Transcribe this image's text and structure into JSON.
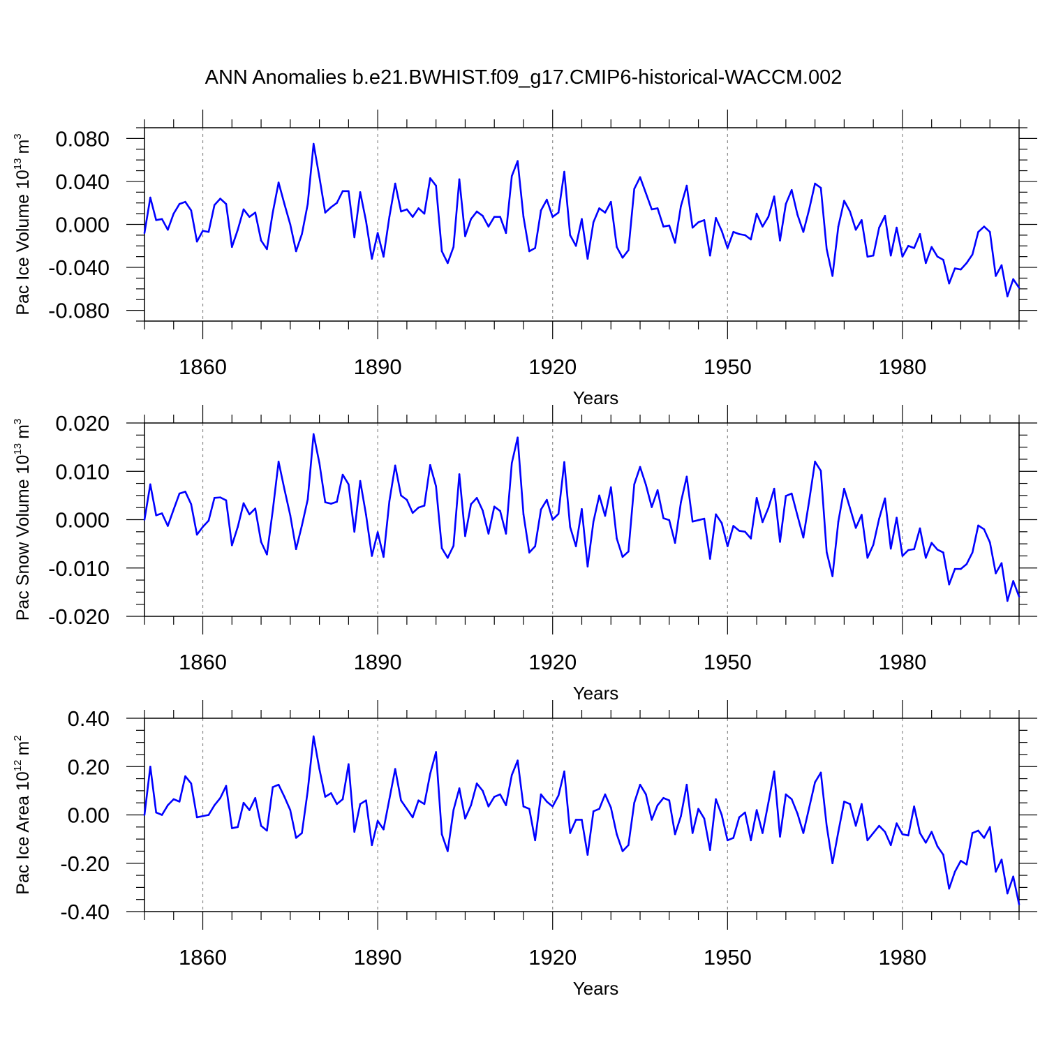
{
  "title": "ANN Anomalies b.e21.BWHIST.f09_g17.CMIP6-historical-WACCM.002",
  "line_color": "#0000ff",
  "chart_data": [
    {
      "type": "line",
      "name": "ice-volume",
      "ylabel_main": "Pac Ice Volume 10",
      "ylabel_exp": "13",
      "ylabel_unit": "m",
      "ylabel_unit_exp": "3",
      "xlabel": "Years",
      "xlim": [
        1850,
        2000
      ],
      "ylim": [
        -0.09,
        0.09
      ],
      "xticks": [
        1860,
        1890,
        1920,
        1950,
        1980
      ],
      "xtick_labels": [
        "1860",
        "1890",
        "1920",
        "1950",
        "1980"
      ],
      "yticks": [
        -0.08,
        -0.04,
        0.0,
        0.04,
        0.08
      ],
      "ytick_labels": [
        "-0.080",
        "-0.040",
        "0.000",
        "0.040",
        "0.080"
      ],
      "grid": "vertical-dashed",
      "x_start": 1850,
      "values": [
        -0.008,
        0.025,
        0.004,
        0.005,
        -0.005,
        0.01,
        0.019,
        0.021,
        0.013,
        -0.016,
        -0.006,
        -0.007,
        0.018,
        0.024,
        0.019,
        -0.021,
        -0.005,
        0.014,
        0.007,
        0.011,
        -0.015,
        -0.023,
        0.011,
        0.039,
        0.019,
        0.0,
        -0.025,
        -0.009,
        0.019,
        0.075,
        0.044,
        0.011,
        0.016,
        0.02,
        0.031,
        0.031,
        -0.012,
        0.03,
        0.003,
        -0.032,
        -0.008,
        -0.03,
        0.007,
        0.038,
        0.012,
        0.014,
        0.007,
        0.015,
        0.01,
        0.043,
        0.036,
        -0.025,
        -0.036,
        -0.021,
        0.042,
        -0.011,
        0.005,
        0.012,
        0.008,
        -0.002,
        0.007,
        0.007,
        -0.008,
        0.045,
        0.059,
        0.007,
        -0.025,
        -0.022,
        0.013,
        0.023,
        0.007,
        0.011,
        0.049,
        -0.01,
        -0.02,
        0.005,
        -0.032,
        0.002,
        0.015,
        0.011,
        0.021,
        -0.021,
        -0.031,
        -0.024,
        0.033,
        0.044,
        0.029,
        0.014,
        0.015,
        -0.002,
        -0.001,
        -0.017,
        0.017,
        0.036,
        -0.003,
        0.002,
        0.004,
        -0.029,
        0.006,
        -0.006,
        -0.022,
        -0.007,
        -0.009,
        -0.01,
        -0.014,
        0.01,
        -0.002,
        0.007,
        0.026,
        -0.015,
        0.019,
        0.032,
        0.009,
        -0.007,
        0.014,
        0.038,
        0.034,
        -0.023,
        -0.048,
        -0.002,
        0.022,
        0.012,
        -0.005,
        0.004,
        -0.03,
        -0.029,
        -0.003,
        0.008,
        -0.029,
        -0.003,
        -0.03,
        -0.02,
        -0.022,
        -0.009,
        -0.036,
        -0.021,
        -0.03,
        -0.033,
        -0.055,
        -0.041,
        -0.042,
        -0.036,
        -0.028,
        -0.007,
        -0.002,
        -0.007,
        -0.048,
        -0.038,
        -0.067,
        -0.051,
        -0.059
      ]
    },
    {
      "type": "line",
      "name": "snow-volume",
      "ylabel_main": "Pac Snow Volume 10",
      "ylabel_exp": "13",
      "ylabel_unit": "m",
      "ylabel_unit_exp": "3",
      "xlabel": "Years",
      "xlim": [
        1850,
        2000
      ],
      "ylim": [
        -0.02,
        0.02
      ],
      "xticks": [
        1860,
        1890,
        1920,
        1950,
        1980
      ],
      "xtick_labels": [
        "1860",
        "1890",
        "1920",
        "1950",
        "1980"
      ],
      "yticks": [
        -0.02,
        -0.01,
        0.0,
        0.01,
        0.02
      ],
      "ytick_labels": [
        "-0.020",
        "-0.010",
        "0.000",
        "0.010",
        "0.020"
      ],
      "grid": "vertical-dashed",
      "x_start": 1850,
      "values": [
        0.0,
        0.0073,
        0.0009,
        0.0013,
        -0.0013,
        0.0021,
        0.0054,
        0.0058,
        0.0032,
        -0.0031,
        -0.0015,
        -0.0002,
        0.0045,
        0.0046,
        0.004,
        -0.0053,
        -0.0015,
        0.0034,
        0.0011,
        0.0023,
        -0.0046,
        -0.0072,
        0.0019,
        0.012,
        0.0063,
        0.0009,
        -0.0061,
        -0.0012,
        0.0042,
        0.0177,
        0.0117,
        0.0036,
        0.0033,
        0.0037,
        0.0093,
        0.0073,
        -0.0025,
        0.008,
        0.001,
        -0.0075,
        -0.0026,
        -0.0077,
        0.0038,
        0.0112,
        0.005,
        0.0041,
        0.0014,
        0.0025,
        0.0029,
        0.0113,
        0.0069,
        -0.0059,
        -0.0079,
        -0.0054,
        0.0094,
        -0.0034,
        0.0032,
        0.0045,
        0.0019,
        -0.0029,
        0.0027,
        0.0018,
        -0.0029,
        0.0117,
        0.017,
        0.0011,
        -0.0068,
        -0.0055,
        0.0021,
        0.0041,
        0.0,
        0.0012,
        0.0119,
        -0.0015,
        -0.0055,
        0.0022,
        -0.0097,
        -0.0004,
        0.005,
        0.0008,
        0.0067,
        -0.0039,
        -0.0077,
        -0.0066,
        0.0073,
        0.0109,
        0.0072,
        0.0026,
        0.0061,
        0.0003,
        -0.0001,
        -0.0048,
        0.0036,
        0.0089,
        -0.0004,
        -0.0001,
        0.0002,
        -0.0081,
        0.0011,
        -0.0007,
        -0.0055,
        -0.0013,
        -0.0023,
        -0.0025,
        -0.0039,
        0.0045,
        -0.0005,
        0.0024,
        0.0064,
        -0.0046,
        0.0049,
        0.0054,
        0.0008,
        -0.0037,
        0.0039,
        0.012,
        0.0101,
        -0.0067,
        -0.0117,
        -0.0004,
        0.0064,
        0.0024,
        -0.0017,
        0.001,
        -0.0079,
        -0.0052,
        0.0002,
        0.0044,
        -0.006,
        0.0004,
        -0.0075,
        -0.0063,
        -0.0061,
        -0.0018,
        -0.0079,
        -0.0048,
        -0.0062,
        -0.0068,
        -0.0134,
        -0.0102,
        -0.0102,
        -0.0092,
        -0.0068,
        -0.0012,
        -0.002,
        -0.0047,
        -0.0111,
        -0.009,
        -0.0168,
        -0.0127,
        -0.0159
      ]
    },
    {
      "type": "line",
      "name": "ice-area",
      "ylabel_main": "Pac Ice Area 10",
      "ylabel_exp": "12",
      "ylabel_unit": "m",
      "ylabel_unit_exp": "2",
      "xlabel": "Years",
      "xlim": [
        1850,
        2000
      ],
      "ylim": [
        -0.4,
        0.4
      ],
      "xticks": [
        1860,
        1890,
        1920,
        1950,
        1980
      ],
      "xtick_labels": [
        "1860",
        "1890",
        "1920",
        "1950",
        "1980"
      ],
      "yticks": [
        -0.4,
        -0.2,
        0.0,
        0.2,
        0.4
      ],
      "ytick_labels": [
        "-0.40",
        "-0.20",
        "0.00",
        "0.20",
        "0.40"
      ],
      "grid": "vertical-dashed",
      "x_start": 1850,
      "values": [
        0.0,
        0.2,
        0.01,
        0.0,
        0.04,
        0.065,
        0.055,
        0.16,
        0.13,
        -0.01,
        -0.005,
        0.0,
        0.04,
        0.07,
        0.12,
        -0.055,
        -0.05,
        0.05,
        0.02,
        0.07,
        -0.045,
        -0.065,
        0.115,
        0.125,
        0.075,
        0.02,
        -0.095,
        -0.075,
        0.1,
        0.325,
        0.19,
        0.075,
        0.09,
        0.045,
        0.065,
        0.21,
        -0.07,
        0.045,
        0.06,
        -0.125,
        -0.025,
        -0.06,
        0.065,
        0.19,
        0.06,
        0.025,
        -0.01,
        0.06,
        0.045,
        0.17,
        0.26,
        -0.08,
        -0.15,
        0.02,
        0.11,
        -0.015,
        0.04,
        0.13,
        0.1,
        0.035,
        0.075,
        0.085,
        0.04,
        0.165,
        0.225,
        0.035,
        0.025,
        -0.105,
        0.085,
        0.055,
        0.035,
        0.08,
        0.18,
        -0.075,
        -0.02,
        -0.02,
        -0.165,
        0.015,
        0.025,
        0.085,
        0.03,
        -0.08,
        -0.15,
        -0.125,
        0.05,
        0.125,
        0.085,
        -0.02,
        0.04,
        0.07,
        0.06,
        -0.08,
        -0.005,
        0.125,
        -0.075,
        0.025,
        -0.015,
        -0.145,
        0.065,
        0.0,
        -0.105,
        -0.095,
        -0.01,
        0.01,
        -0.105,
        0.02,
        -0.075,
        0.05,
        0.18,
        -0.09,
        0.085,
        0.065,
        0.005,
        -0.075,
        0.03,
        0.135,
        0.175,
        -0.045,
        -0.2,
        -0.07,
        0.055,
        0.045,
        -0.045,
        0.045,
        -0.105,
        -0.075,
        -0.045,
        -0.07,
        -0.125,
        -0.035,
        -0.08,
        -0.085,
        0.035,
        -0.075,
        -0.115,
        -0.07,
        -0.13,
        -0.165,
        -0.305,
        -0.235,
        -0.19,
        -0.205,
        -0.075,
        -0.065,
        -0.095,
        -0.05,
        -0.235,
        -0.185,
        -0.325,
        -0.255,
        -0.37
      ]
    }
  ]
}
